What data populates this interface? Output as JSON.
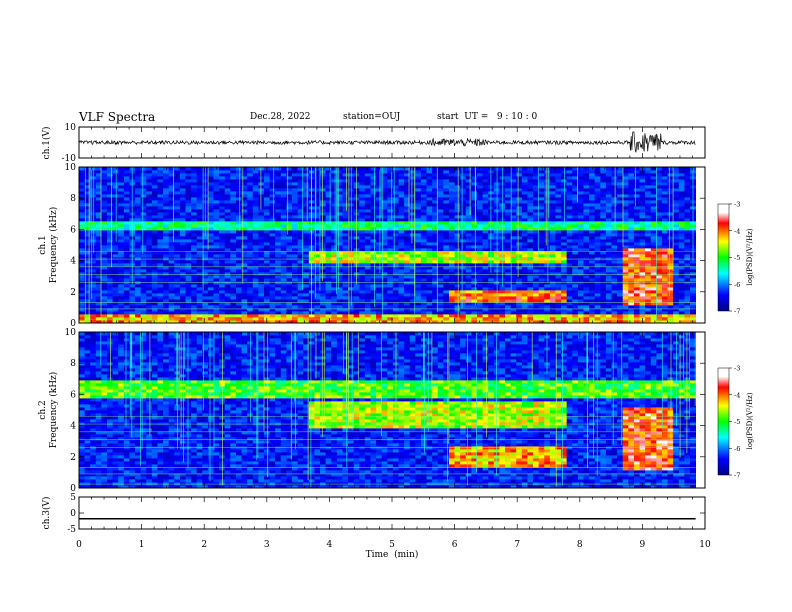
{
  "header": {
    "title": "VLF Spectra",
    "date": "Dec.28, 2022",
    "station": "station=OUJ",
    "start_ut": "start  UT =   9 : 10 : 0"
  },
  "chart_data": [
    {
      "type": "line",
      "panel": "ch1-waveform",
      "ylabel": "ch.1(V)",
      "ylim": [
        -10,
        10
      ],
      "yticks": [
        "10",
        "-10"
      ],
      "baseline": 0,
      "burst_intervals_min": [
        [
          5.6,
          6.5
        ],
        [
          8.8,
          9.3
        ]
      ],
      "color": "#000000"
    },
    {
      "type": "heatmap",
      "panel": "ch1-spectrogram",
      "title": "ch.1",
      "ylabel": "Frequency (kHz)",
      "ylim": [
        0,
        10
      ],
      "yticks": [
        "0",
        "2",
        "4",
        "6",
        "8",
        "10"
      ],
      "colorbar": {
        "label": "log(PSD)(V²/Hz)",
        "range": [
          -7,
          -3
        ],
        "ticks": [
          "-3",
          "-4",
          "-5",
          "-6",
          "-7"
        ]
      },
      "features": [
        {
          "name": "persistent band",
          "freq_khz": [
            6.0,
            6.6
          ],
          "level": -5.3
        },
        {
          "name": "emission",
          "time_min": [
            3.7,
            7.8
          ],
          "freq_khz": [
            3.8,
            4.6
          ],
          "level": -4.6
        },
        {
          "name": "emission",
          "time_min": [
            5.9,
            7.8
          ],
          "freq_khz": [
            1.4,
            2.2
          ],
          "level": -4.0
        },
        {
          "name": "emission",
          "time_min": [
            8.7,
            9.5
          ],
          "freq_khz": [
            1.2,
            4.8
          ],
          "level": -3.8
        },
        {
          "name": "low-frequency band",
          "freq_khz": [
            0,
            0.6
          ],
          "level": -4.2
        }
      ]
    },
    {
      "type": "heatmap",
      "panel": "ch2-spectrogram",
      "title": "ch.2",
      "ylabel": "Frequency (kHz)",
      "ylim": [
        0,
        10
      ],
      "yticks": [
        "0",
        "2",
        "4",
        "6",
        "8",
        "10"
      ],
      "colorbar": {
        "label": "log(PSD)(V²/Hz)",
        "range": [
          -7,
          -3
        ],
        "ticks": [
          "-3",
          "-4",
          "-5",
          "-6",
          "-7"
        ]
      },
      "features": [
        {
          "name": "persistent band",
          "freq_khz": [
            5.8,
            7.0
          ],
          "level": -4.9
        },
        {
          "name": "emission",
          "time_min": [
            3.7,
            7.8
          ],
          "freq_khz": [
            3.8,
            5.6
          ],
          "level": -4.6
        },
        {
          "name": "emission",
          "time_min": [
            5.9,
            7.8
          ],
          "freq_khz": [
            1.4,
            2.6
          ],
          "level": -4.2
        },
        {
          "name": "emission",
          "time_min": [
            8.7,
            9.5
          ],
          "freq_khz": [
            1.2,
            5.2
          ],
          "level": -3.8
        }
      ]
    },
    {
      "type": "line",
      "panel": "ch3-waveform",
      "ylabel": "ch.3(V)",
      "ylim": [
        -5,
        5
      ],
      "yticks": [
        "5",
        "0",
        "-5"
      ],
      "value": -1.8,
      "color": "#000000"
    }
  ],
  "xaxis": {
    "label": "Time  (min)",
    "range": [
      0,
      10
    ],
    "ticks": [
      "0",
      "1",
      "2",
      "3",
      "4",
      "5",
      "6",
      "7",
      "8",
      "9",
      "10"
    ],
    "data_end": 9.85
  }
}
